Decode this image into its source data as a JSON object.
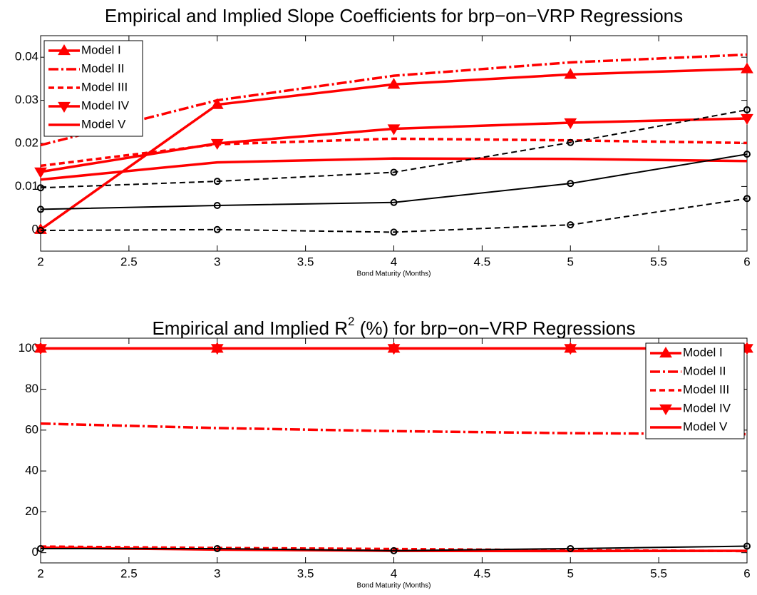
{
  "chart_data": [
    {
      "type": "line",
      "title_parts": [
        "Empirical and Implied Slope Coefficients for brp−on−VRP Regressions"
      ],
      "x_label": "Bond Maturity (Months)",
      "x": [
        2,
        3,
        4,
        5,
        6
      ],
      "xlim": [
        2,
        6
      ],
      "xticks": [
        2,
        2.5,
        3,
        3.5,
        4,
        4.5,
        5,
        5.5,
        6
      ],
      "ylim": [
        -0.005,
        0.045
      ],
      "yticks": [
        0,
        0.01,
        0.02,
        0.03,
        0.04
      ],
      "legend": "upper-left",
      "series": [
        {
          "name": "Model I",
          "color": "#ff0000",
          "dash": "solid",
          "marker": "triangle-up",
          "values": [
            0,
            0.029,
            0.0337,
            0.036,
            0.0373
          ]
        },
        {
          "name": "Model II",
          "color": "#ff0000",
          "dash": "dashdot",
          "marker": "none",
          "values": [
            0.0196,
            0.03,
            0.0357,
            0.0388,
            0.0406
          ]
        },
        {
          "name": "Model III",
          "color": "#ff0000",
          "dash": "dashed",
          "marker": "none",
          "values": [
            0.0148,
            0.0198,
            0.0211,
            0.0207,
            0.0201
          ]
        },
        {
          "name": "Model IV",
          "color": "#ff0000",
          "dash": "solid",
          "marker": "triangle-down",
          "values": [
            0.0134,
            0.02,
            0.0234,
            0.0248,
            0.0258
          ]
        },
        {
          "name": "Model V",
          "color": "#ff0000",
          "dash": "solid",
          "marker": "none",
          "values": [
            0.0116,
            0.0156,
            0.0165,
            0.0164,
            0.0159
          ]
        },
        {
          "color": "#000000",
          "dash": "dashed",
          "marker": "circle",
          "values": [
            0.0097,
            0.0112,
            0.0133,
            0.0202,
            0.0278
          ]
        },
        {
          "color": "#000000",
          "dash": "solid",
          "marker": "circle",
          "values": [
            0.0047,
            0.0056,
            0.0063,
            0.0107,
            0.0175
          ]
        },
        {
          "color": "#000000",
          "dash": "dashed",
          "marker": "circle",
          "values": [
            -0.0002,
            0.0,
            -0.0006,
            0.0011,
            0.0072
          ]
        }
      ]
    },
    {
      "type": "line",
      "title_parts": [
        "Empirical and Implied R",
        "2",
        " (%) for brp−on−VRP Regressions"
      ],
      "x_label": "Bond Maturity (Months)",
      "x": [
        2,
        3,
        4,
        5,
        6
      ],
      "xlim": [
        2,
        6
      ],
      "xticks": [
        2,
        2.5,
        3,
        3.5,
        4,
        4.5,
        5,
        5.5,
        6
      ],
      "ylim": [
        -5,
        105
      ],
      "yticks": [
        0,
        20,
        40,
        60,
        80,
        100
      ],
      "legend": "upper-right",
      "series": [
        {
          "name": "Model I",
          "color": "#ff0000",
          "dash": "solid",
          "marker": "triangle-up",
          "values": [
            100,
            100,
            100,
            100,
            100
          ]
        },
        {
          "name": "Model II",
          "color": "#ff0000",
          "dash": "dashdot",
          "marker": "none",
          "values": [
            63.2,
            61,
            59.5,
            58.5,
            58
          ]
        },
        {
          "name": "Model III",
          "color": "#ff0000",
          "dash": "dashed",
          "marker": "none",
          "values": [
            3,
            2.3,
            1.8,
            1.2,
            0.8
          ]
        },
        {
          "name": "Model IV",
          "color": "#ff0000",
          "dash": "solid",
          "marker": "triangle-down",
          "values": [
            100,
            100,
            100,
            100,
            100
          ]
        },
        {
          "name": "Model V",
          "color": "#ff0000",
          "dash": "solid",
          "marker": "none",
          "values": [
            2.5,
            1.5,
            0.9,
            0.8,
            0.9
          ]
        },
        {
          "color": "#000000",
          "dash": "solid",
          "marker": "circle",
          "values": [
            2,
            2,
            1,
            2,
            3.2
          ]
        }
      ]
    }
  ]
}
